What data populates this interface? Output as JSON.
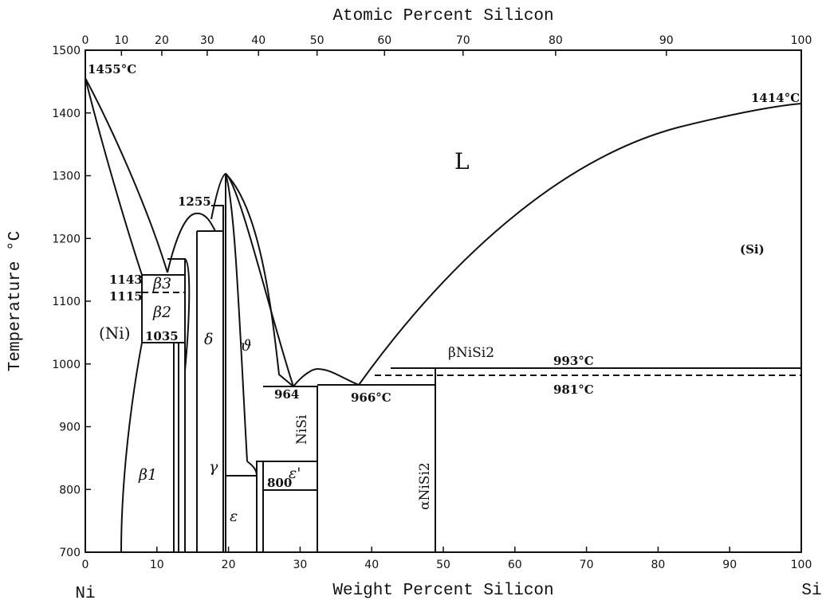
{
  "top_axis": {
    "label": "Atomic Percent Silicon",
    "ticks": [
      0,
      10,
      20,
      30,
      40,
      50,
      60,
      70,
      80,
      90,
      100
    ]
  },
  "bottom_axis": {
    "label": "Weight Percent Silicon",
    "xlim": [
      0,
      100
    ],
    "ticks": [
      0,
      10,
      20,
      30,
      40,
      50,
      60,
      70,
      80,
      90,
      100
    ],
    "left_end": "Ni",
    "right_end": "Si"
  },
  "left_axis": {
    "label": "Temperature °C",
    "ylim": [
      700,
      1500
    ],
    "ticks": [
      700,
      800,
      900,
      1000,
      1100,
      1200,
      1300,
      1400,
      1500
    ]
  },
  "annotations": [
    "1455°C",
    "1414°C",
    "L",
    "(Si)",
    "1255",
    "1143",
    "1115",
    "1035",
    "(Ni)",
    "β3",
    "β2",
    "β1",
    "γ",
    "δ",
    "ϑ",
    "ε",
    "ε'",
    "800",
    "964",
    "NiSi",
    "966°C",
    "βNiSi2",
    "993°C",
    "981°C",
    "αNiSi2"
  ]
}
